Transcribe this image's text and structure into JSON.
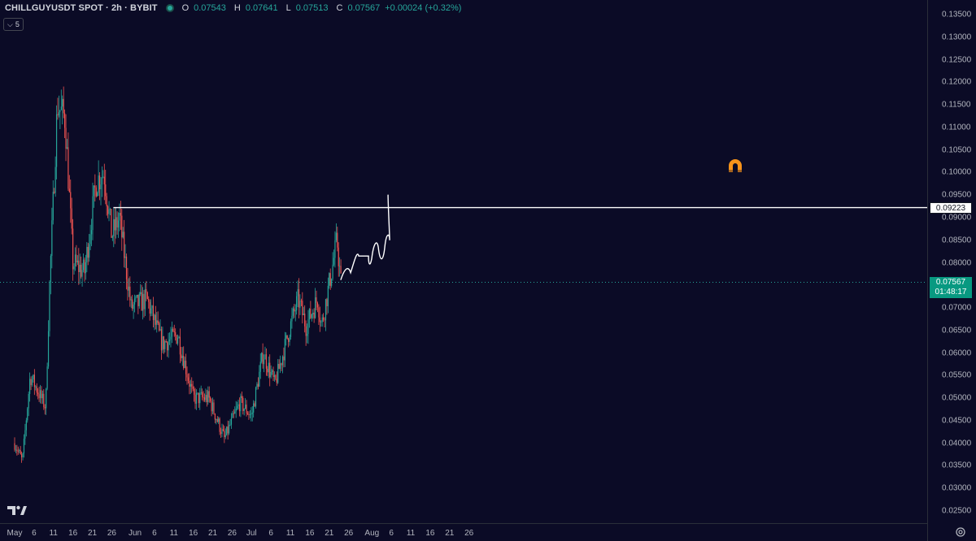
{
  "header": {
    "symbol_title": "CHILLGUYUSDT SPOT · 2h · BYBIT",
    "open_label": "O",
    "open_value": "0.07543",
    "high_label": "H",
    "high_value": "0.07641",
    "low_label": "L",
    "low_value": "0.07513",
    "close_label": "C",
    "close_value": "0.07567",
    "change": "+0.00024 (+0.32%)"
  },
  "indicator_toggle": {
    "count": "5"
  },
  "price_axis": {
    "ticks": [
      "0.13500",
      "0.13000",
      "0.12500",
      "0.12000",
      "0.11500",
      "0.11000",
      "0.10500",
      "0.10000",
      "0.09500",
      "0.09000",
      "0.08500",
      "0.08000",
      "0.07000",
      "0.06500",
      "0.06000",
      "0.05500",
      "0.05000",
      "0.04500",
      "0.04000",
      "0.03500",
      "0.03000",
      "0.02500"
    ],
    "level_label": "0.09223",
    "current_price": "0.07567",
    "countdown": "01:48:17"
  },
  "time_axis": {
    "ticks": [
      "May",
      "6",
      "11",
      "16",
      "21",
      "26",
      "Jun",
      "6",
      "11",
      "16",
      "21",
      "26",
      "Jul",
      "6",
      "11",
      "16",
      "21",
      "26",
      "Aug",
      "6",
      "11",
      "16",
      "21",
      "26"
    ]
  },
  "colors": {
    "background": "#0b0b26",
    "up": "#26a69a",
    "down": "#ef5350",
    "drawing": "#ffffff",
    "price_label_bg": "#089981",
    "magnet": "#f7931a"
  },
  "chart_data": {
    "type": "candlestick",
    "symbol": "CHILLGUYUSDT",
    "interval": "2h",
    "exchange": "BYBIT",
    "ylim": [
      0.0225,
      0.136
    ],
    "horizontal_line": 0.09223,
    "last_price": 0.07567,
    "path_close_estimates": [
      {
        "x": "May 1",
        "y": 0.04
      },
      {
        "x": "May 3",
        "y": 0.036
      },
      {
        "x": "May 5",
        "y": 0.055
      },
      {
        "x": "May 9",
        "y": 0.048
      },
      {
        "x": "May 10",
        "y": 0.075
      },
      {
        "x": "May 12",
        "y": 0.115
      },
      {
        "x": "May 14",
        "y": 0.112
      },
      {
        "x": "May 16",
        "y": 0.08
      },
      {
        "x": "May 19",
        "y": 0.078
      },
      {
        "x": "May 22",
        "y": 0.098
      },
      {
        "x": "May 24",
        "y": 0.1
      },
      {
        "x": "May 26",
        "y": 0.086
      },
      {
        "x": "May 28",
        "y": 0.09
      },
      {
        "x": "May 31",
        "y": 0.07
      },
      {
        "x": "Jun 4",
        "y": 0.072
      },
      {
        "x": "Jun 8",
        "y": 0.062
      },
      {
        "x": "Jun 12",
        "y": 0.064
      },
      {
        "x": "Jun 16",
        "y": 0.05
      },
      {
        "x": "Jun 20",
        "y": 0.05
      },
      {
        "x": "Jun 24",
        "y": 0.041
      },
      {
        "x": "Jun 28",
        "y": 0.049
      },
      {
        "x": "Jul 1",
        "y": 0.046
      },
      {
        "x": "Jul 4",
        "y": 0.06
      },
      {
        "x": "Jul 7",
        "y": 0.053
      },
      {
        "x": "Jul 11",
        "y": 0.066
      },
      {
        "x": "Jul 13",
        "y": 0.072
      },
      {
        "x": "Jul 15",
        "y": 0.066
      },
      {
        "x": "Jul 18",
        "y": 0.072
      },
      {
        "x": "Jul 19",
        "y": 0.066
      },
      {
        "x": "Jul 22",
        "y": 0.08
      },
      {
        "x": "Jul 23",
        "y": 0.085
      },
      {
        "x": "Jul 24",
        "y": 0.0757
      }
    ]
  }
}
